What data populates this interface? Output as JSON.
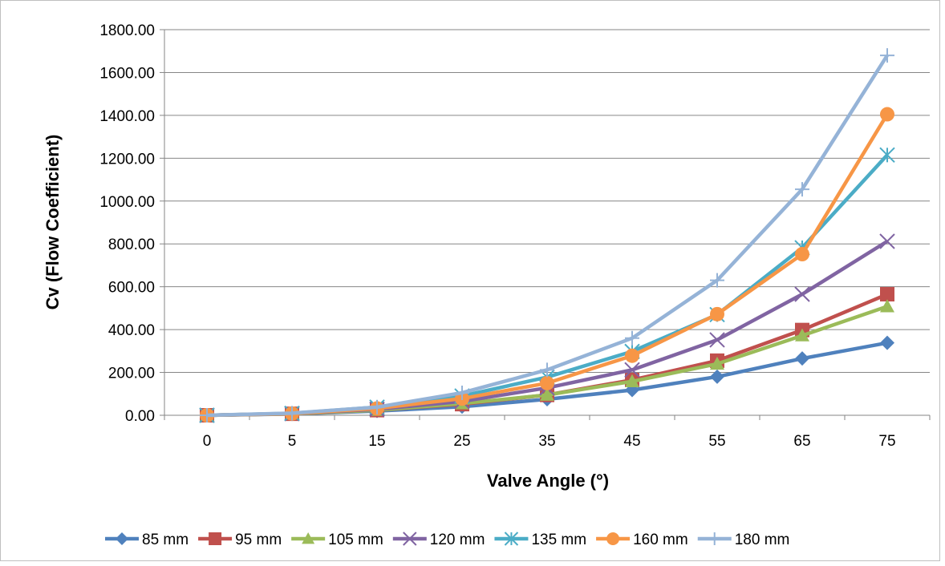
{
  "chart_data": {
    "type": "line",
    "title": "",
    "xlabel": "Valve Angle (°)",
    "ylabel": "Cv (Flow Coefficient)",
    "categories": [
      "0",
      "5",
      "15",
      "25",
      "35",
      "45",
      "55",
      "65",
      "75"
    ],
    "ylim": [
      0,
      1800
    ],
    "yticks": [
      "0.00",
      "200.00",
      "400.00",
      "600.00",
      "800.00",
      "1000.00",
      "1200.00",
      "1400.00",
      "1600.00",
      "1800.00"
    ],
    "grid": true,
    "legend_position": "bottom",
    "series": [
      {
        "name": "85 mm",
        "color": "#4F81BD",
        "marker": "diamond",
        "values": [
          0,
          6,
          20,
          40,
          75,
          118,
          180,
          265,
          338
        ]
      },
      {
        "name": "95 mm",
        "color": "#C0504D",
        "marker": "square",
        "values": [
          0,
          7,
          24,
          52,
          95,
          165,
          255,
          398,
          565
        ]
      },
      {
        "name": "105 mm",
        "color": "#9BBB59",
        "marker": "triangle",
        "values": [
          0,
          7,
          24,
          55,
          95,
          158,
          240,
          372,
          508
        ]
      },
      {
        "name": "120 mm",
        "color": "#8064A2",
        "marker": "x",
        "values": [
          0,
          8,
          28,
          65,
          128,
          212,
          352,
          565,
          812
        ]
      },
      {
        "name": "135 mm",
        "color": "#4BACC6",
        "marker": "asterisk",
        "values": [
          0,
          9,
          38,
          90,
          178,
          298,
          470,
          782,
          1215
        ]
      },
      {
        "name": "160 mm",
        "color": "#F79646",
        "marker": "circle",
        "values": [
          0,
          8,
          32,
          78,
          150,
          278,
          472,
          752,
          1405
        ]
      },
      {
        "name": "180 mm",
        "color": "#95B3D7",
        "marker": "plus",
        "values": [
          0,
          10,
          38,
          105,
          212,
          360,
          630,
          1055,
          1680
        ]
      }
    ]
  }
}
